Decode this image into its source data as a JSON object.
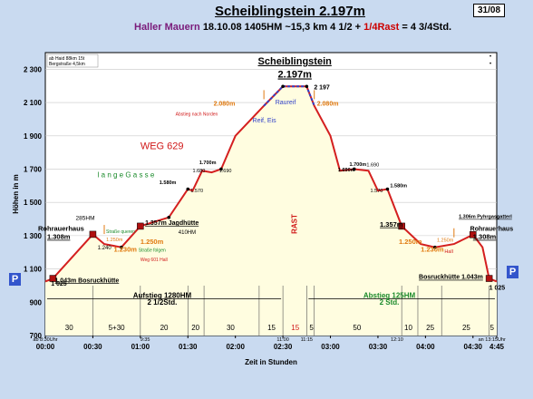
{
  "header": {
    "title": "Scheiblingstein 2.197m",
    "region": "Haller Mauern",
    "summary": "18.10.08  1405HM  ~15,3 km  4 1/2 + ",
    "rast_part": "1/4Rast",
    "summary_end": " = 4 3/4Std.",
    "badge": "31/08"
  },
  "notes": {
    "line1": "ab Haid 88km 15t",
    "line2": "Bergstraße 4,5km",
    "dot1": "•",
    "dot2": "•"
  },
  "chart_data": {
    "type": "area",
    "xlabel": "Zeit in Stunden",
    "ylabel": "Höhen in m",
    "ylim": [
      700,
      2400
    ],
    "xlim": [
      0,
      4.75
    ],
    "grid": true,
    "ytick_values": [
      700,
      900,
      1100,
      1300,
      1500,
      1700,
      1900,
      2100,
      2300
    ],
    "yticks": [
      "700",
      "900",
      "1 100",
      "1 300",
      "1 500",
      "1 700",
      "1 900",
      "2 100",
      "2 300"
    ],
    "xtick_values": [
      0,
      0.5,
      1,
      1.5,
      2,
      2.5,
      3,
      3.5,
      4,
      4.5,
      4.75
    ],
    "xticks": [
      "00:00",
      "00:30",
      "01:00",
      "01:30",
      "02:00",
      "02:30",
      "03:00",
      "03:30",
      "04:00",
      "04:30",
      "4:45"
    ],
    "profile": [
      {
        "t": 0.0,
        "h": 1025
      },
      {
        "t": 0.08,
        "h": 1043
      },
      {
        "t": 0.5,
        "h": 1308
      },
      {
        "t": 0.62,
        "h": 1250
      },
      {
        "t": 0.8,
        "h": 1230
      },
      {
        "t": 1.0,
        "h": 1357
      },
      {
        "t": 1.3,
        "h": 1410
      },
      {
        "t": 1.5,
        "h": 1580
      },
      {
        "t": 1.55,
        "h": 1570
      },
      {
        "t": 1.65,
        "h": 1690
      },
      {
        "t": 1.75,
        "h": 1680
      },
      {
        "t": 1.85,
        "h": 1700
      },
      {
        "t": 2.0,
        "h": 1900
      },
      {
        "t": 2.3,
        "h": 2080
      },
      {
        "t": 2.5,
        "h": 2197
      },
      {
        "t": 2.75,
        "h": 2197
      },
      {
        "t": 2.83,
        "h": 2080
      },
      {
        "t": 3.0,
        "h": 1900
      },
      {
        "t": 3.1,
        "h": 1690
      },
      {
        "t": 3.25,
        "h": 1700
      },
      {
        "t": 3.4,
        "h": 1690
      },
      {
        "t": 3.5,
        "h": 1570
      },
      {
        "t": 3.6,
        "h": 1580
      },
      {
        "t": 3.75,
        "h": 1357
      },
      {
        "t": 3.95,
        "h": 1250
      },
      {
        "t": 4.1,
        "h": 1230
      },
      {
        "t": 4.3,
        "h": 1250
      },
      {
        "t": 4.5,
        "h": 1306
      },
      {
        "t": 4.6,
        "h": 1230
      },
      {
        "t": 4.67,
        "h": 1043
      },
      {
        "t": 4.75,
        "h": 1025
      }
    ],
    "segments": [
      {
        "x": 0.25,
        "label": "30"
      },
      {
        "x": 0.75,
        "label": "5+30"
      },
      {
        "x": 1.25,
        "label": "20"
      },
      {
        "x": 1.58,
        "label": "20"
      },
      {
        "x": 1.95,
        "label": "30"
      },
      {
        "x": 2.38,
        "label": "15"
      },
      {
        "x": 2.63,
        "label": "15"
      },
      {
        "x": 2.8,
        "label": "5"
      },
      {
        "x": 3.28,
        "label": "50"
      },
      {
        "x": 3.82,
        "label": "10"
      },
      {
        "x": 4.05,
        "label": "25"
      },
      {
        "x": 4.43,
        "label": "25"
      },
      {
        "x": 4.7,
        "label": "5"
      }
    ],
    "segment_lines": [
      0.5,
      1.0,
      1.5,
      1.67,
      2.25,
      2.5,
      2.75,
      2.83,
      3.75,
      3.92,
      4.17,
      4.67
    ],
    "small_times": [
      {
        "x": 0.0,
        "label": "ab 8:30Uhr"
      },
      {
        "x": 1.05,
        "label": "9:35"
      },
      {
        "x": 2.5,
        "label": "11:00"
      },
      {
        "x": 2.75,
        "label": "11:15"
      },
      {
        "x": 3.7,
        "label": "12:10"
      },
      {
        "x": 4.7,
        "label": "an 13:15Uhr"
      }
    ],
    "annotations": {
      "peak_title": "Scheiblingstein",
      "peak_height": "2.197m",
      "peak_value": "2 197",
      "rohrauerhaus_left": "Rohrauerhaus",
      "rohrauerhaus_left_h": "1.308m",
      "hm285": "285HM",
      "bosruck_left": "1.043m Bosruckhütte",
      "jagdhuette": "1.357m Jagdhütte",
      "hm410": "410HM",
      "weg": "WEG 629",
      "lange_gasse": "l a n g e   G a s s e",
      "aufstieg": "Aufstieg 1280HM",
      "aufstieg_time": "2 1/2Std.",
      "abstieg": "Abstieg 125HM",
      "abstieg_time": "2 Std.",
      "rast": "RAST",
      "rast_min": "15",
      "reif": "Reif, Eis",
      "raureif": "Raureif",
      "abstieg_nord": "Abstieg nach Norden",
      "h2080l": "2.080m",
      "h2080r": "2.080m",
      "h1700l": "1.700m",
      "h1580l": "1.580m",
      "h1570l": "1.570",
      "h1680": "1.680",
      "h1690l": "1.690",
      "h1700r": "1.700m",
      "h1690r": "1.690m",
      "h1690r2": "1.690",
      "h1580r": "1.580m",
      "h1570r": "1.570",
      "h1357r": "1.357m",
      "h1250l": "1.250m",
      "h1230l": "1.230m",
      "h1240": "1.240",
      "h1250sm": "1.250m",
      "strasse_queren": "Straße queren",
      "strasse_folgen": "Straße folgen",
      "weg601": "Weg 601 Hall",
      "h1250r": "1.250m",
      "h1250rs": "1.250m",
      "h1230r": "1.230m",
      "hall": "Hall",
      "pyhrgas": "1.306m Pyhrgasgatterl",
      "rohrauerhaus_right": "Rohrauerhaus",
      "rohrauerhaus_right_h": "1.308m",
      "bosruck_right": "Bosruckhütte 1.043m",
      "p_left": "P",
      "p_right": "P",
      "start_h": "1 025",
      "end_h": "1 025"
    }
  },
  "colors": {
    "area_fill": "#fffde0",
    "profile_line": "#d41f1f",
    "peak_line": "#3040c8",
    "hut": "#b01010",
    "orange": "#e07a10",
    "green": "#1a8a2a",
    "red_text": "#d01818",
    "background": "#c9daf0"
  }
}
